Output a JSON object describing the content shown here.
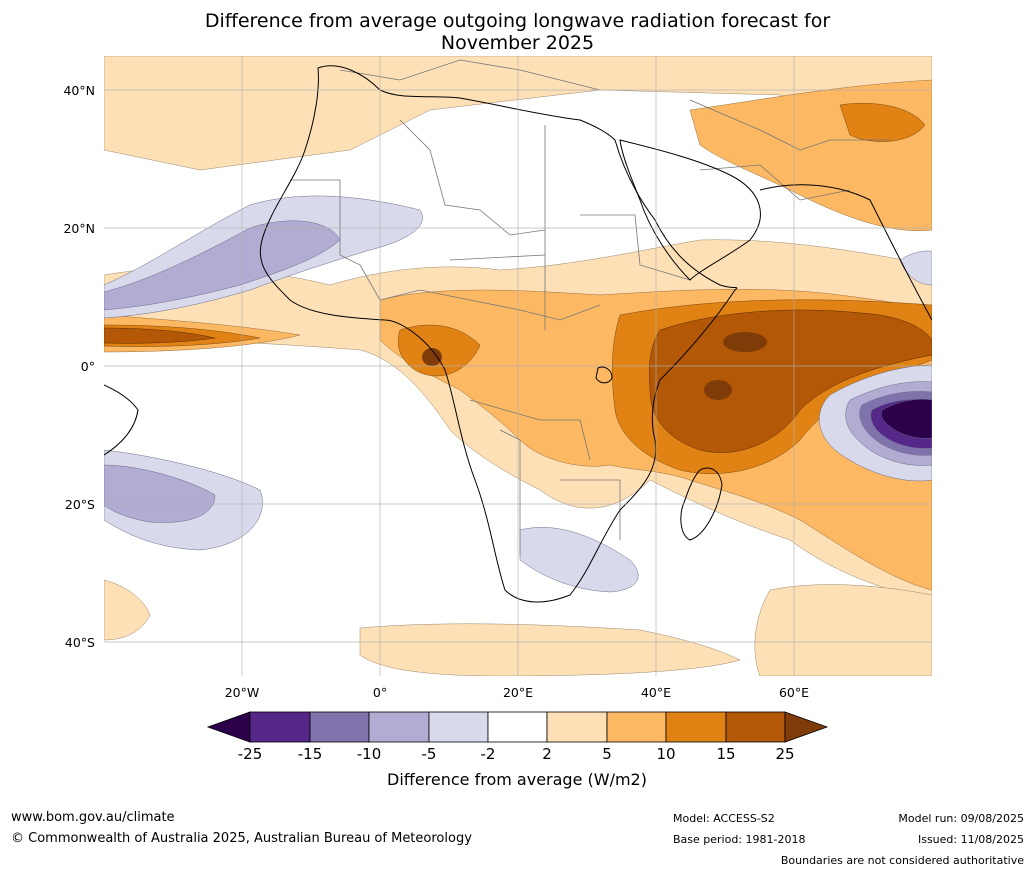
{
  "title_line1": "Difference from average outgoing longwave radiation forecast for",
  "title_line2": "November 2025",
  "lat_labels": [
    "40°N",
    "20°N",
    "0°",
    "20°S",
    "40°S"
  ],
  "lon_labels": [
    "20°W",
    "0°",
    "20°E",
    "40°E",
    "60°E"
  ],
  "colorbar": {
    "title": "Difference from average (W/m2)",
    "ticks": [
      "-25",
      "-15",
      "-10",
      "-5",
      "-2",
      "2",
      "5",
      "10",
      "15",
      "25"
    ],
    "colors": {
      "lt_-25": "#2d004b",
      "-25_-15": "#542788",
      "-15_-10": "#8073ac",
      "-10_-5": "#b2abd2",
      "-5_-2": "#d8daeb",
      "-2_2": "#ffffff",
      "2_5": "#fee0b6",
      "5_10": "#fdb863",
      "10_15": "#e08214",
      "15_25": "#b35806",
      "gt_25": "#7f3b08"
    }
  },
  "footer": {
    "url": "www.bom.gov.au/climate",
    "copyright": "© Commonwealth of Australia 2025, Australian Bureau of Meteorology",
    "model": "Model: ACCESS-S2",
    "base_period": "Base period: 1981-2018",
    "model_run": "Model run: 09/08/2025",
    "issued": "Issued: 11/08/2025",
    "disclaimer": "Boundaries are not considered authoritative"
  }
}
